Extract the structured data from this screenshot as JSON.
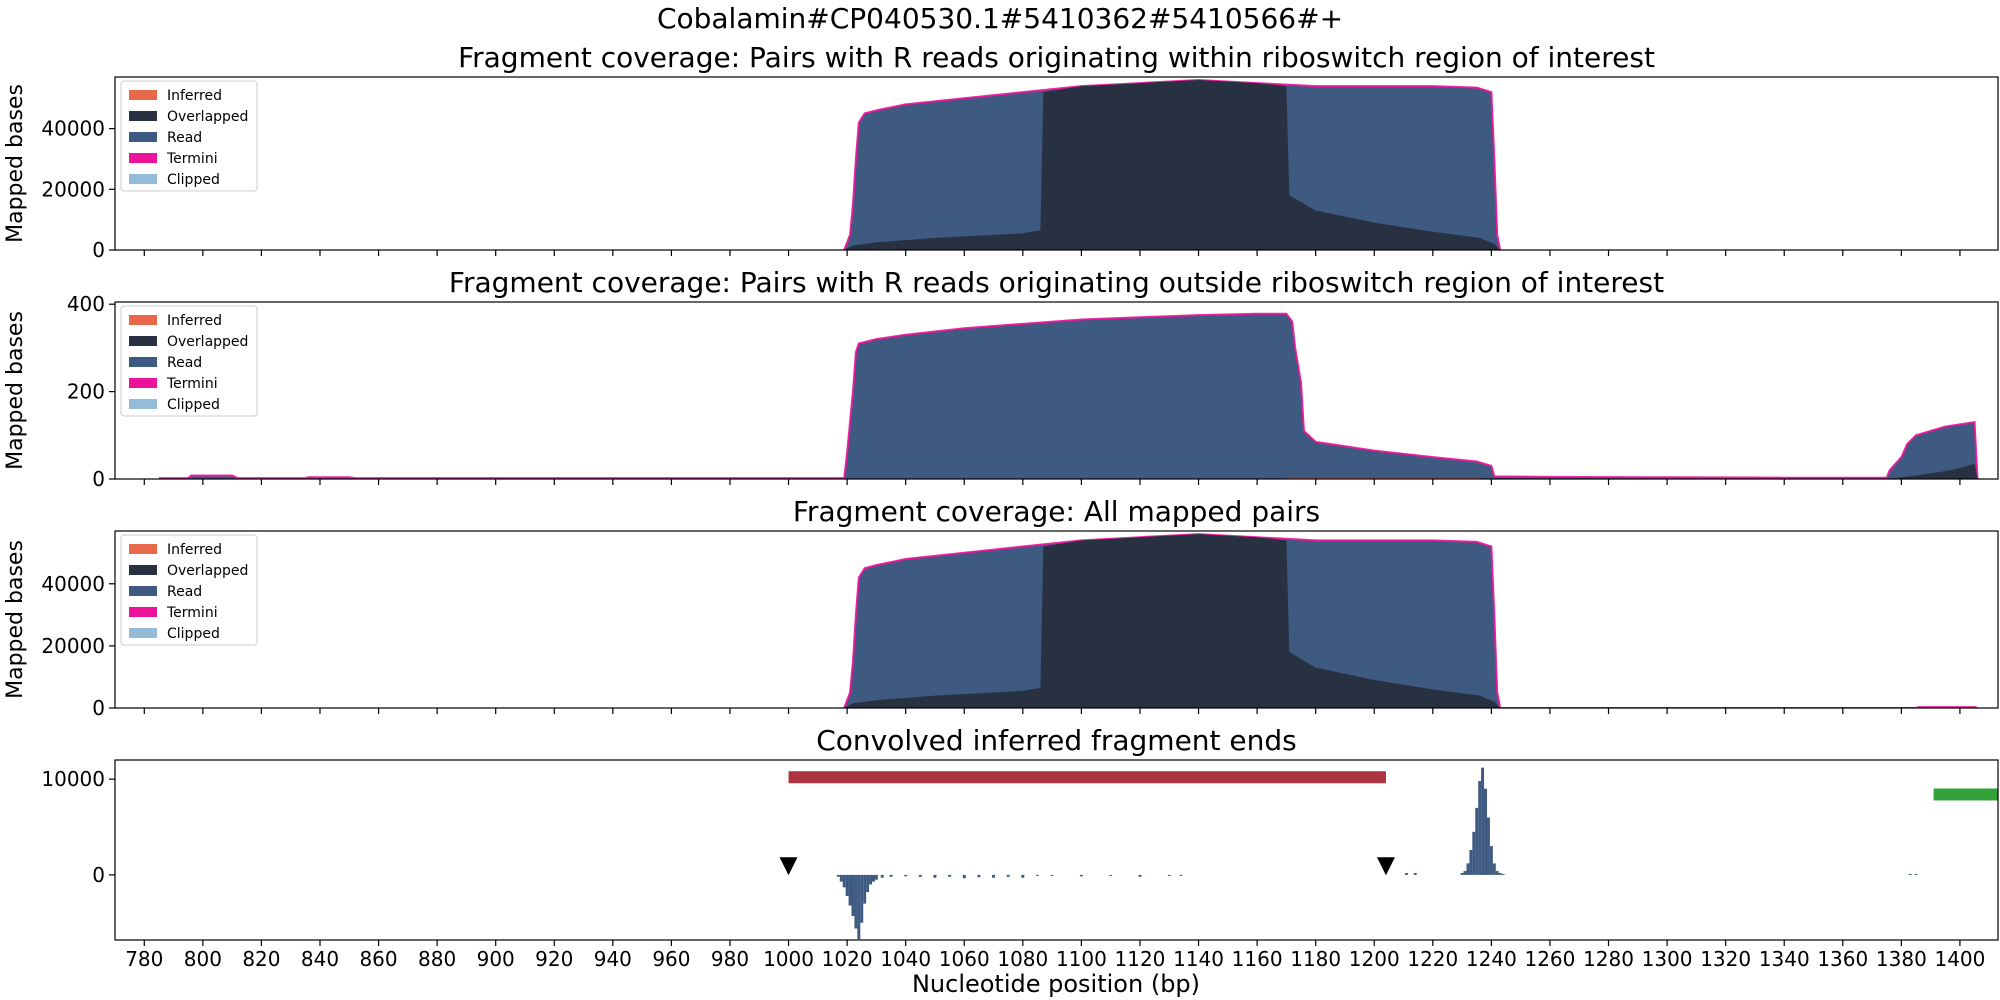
{
  "figure_title": "Cobalamin#CP040530.1#5410362#5410566#+",
  "xlabel": "Nucleotide position (bp)",
  "x_ticks": [
    780,
    800,
    820,
    840,
    860,
    880,
    900,
    920,
    940,
    960,
    980,
    1000,
    1020,
    1040,
    1060,
    1080,
    1100,
    1120,
    1140,
    1160,
    1180,
    1200,
    1220,
    1240,
    1260,
    1280,
    1300,
    1320,
    1340,
    1360,
    1380,
    1400
  ],
  "x_tick_labels": [
    "780",
    "800",
    "820",
    "840",
    "860",
    "880",
    "900",
    "920",
    "940",
    "960",
    "980",
    "1000",
    "1020",
    "1040",
    "1060",
    "1080",
    "1100",
    "1120",
    "1140",
    "1160",
    "1180",
    "1200",
    "1220",
    "1240",
    "1260",
    "1280",
    "1300",
    "1320",
    "1340",
    "1360",
    "1380",
    "1400"
  ],
  "colors": {
    "inferred": "#e8684a",
    "overlapped": "#283142",
    "read": "#3e5a80",
    "termini": "#ee1199",
    "clipped": "#92bcd8",
    "bar_red": "#ad3340",
    "bar_green": "#34a23a",
    "marker": "#000000"
  },
  "legend_labels": [
    "Inferred",
    "Overlapped",
    "Read",
    "Termini",
    "Clipped"
  ],
  "chart_data": [
    {
      "type": "area",
      "title": "Fragment coverage: Pairs with R reads originating within riboswitch region of interest",
      "xlabel": "",
      "ylabel": "Mapped bases",
      "xlim": [
        770,
        1413
      ],
      "ylim": [
        0,
        57000
      ],
      "yticks": [
        0,
        20000,
        40000
      ],
      "ytick_labels": [
        "0",
        "20000",
        "40000"
      ],
      "legend": "top-left",
      "grid": false,
      "series": [
        {
          "name": "Read",
          "x": [
            1019,
            1021,
            1022,
            1023,
            1024,
            1026,
            1030,
            1040,
            1060,
            1080,
            1100,
            1120,
            1140,
            1160,
            1180,
            1200,
            1220,
            1235,
            1240,
            1241,
            1242,
            1243
          ],
          "values": [
            0,
            5000,
            15000,
            30000,
            42000,
            45000,
            46000,
            48000,
            50000,
            52000,
            54000,
            55000,
            56000,
            55000,
            54000,
            54000,
            54000,
            53500,
            52000,
            30000,
            5000,
            0
          ]
        },
        {
          "name": "Overlapped",
          "x": [
            1019,
            1022,
            1030,
            1050,
            1070,
            1080,
            1086,
            1087,
            1100,
            1120,
            1140,
            1160,
            1170,
            1171,
            1180,
            1200,
            1220,
            1236,
            1241,
            1243
          ],
          "values": [
            0,
            1500,
            2500,
            4000,
            5000,
            5500,
            6500,
            52000,
            54000,
            55000,
            56000,
            55000,
            54000,
            18000,
            13000,
            9000,
            6000,
            4000,
            2000,
            0
          ]
        }
      ]
    },
    {
      "type": "area",
      "title": "Fragment coverage: Pairs with R reads originating outside riboswitch region of interest",
      "xlabel": "",
      "ylabel": "Mapped bases",
      "xlim": [
        770,
        1413
      ],
      "ylim": [
        0,
        405
      ],
      "yticks": [
        0,
        200,
        400
      ],
      "ytick_labels": [
        "0",
        "200",
        "400"
      ],
      "legend": "top-left",
      "grid": false,
      "series": [
        {
          "name": "Read",
          "x": [
            785,
            795,
            796,
            810,
            812,
            835,
            836,
            850,
            852,
            1019,
            1020,
            1022,
            1023,
            1024,
            1030,
            1040,
            1060,
            1080,
            1100,
            1120,
            1140,
            1160,
            1170,
            1172,
            1173,
            1175,
            1176,
            1180,
            1200,
            1220,
            1235,
            1240,
            1241,
            1260,
            1300,
            1340,
            1375,
            1376,
            1380,
            1382,
            1385,
            1390,
            1395,
            1400,
            1405,
            1406
          ],
          "values": [
            2,
            2,
            8,
            8,
            2,
            2,
            4,
            4,
            2,
            2,
            60,
            200,
            290,
            310,
            320,
            330,
            345,
            355,
            365,
            370,
            375,
            378,
            378,
            360,
            300,
            220,
            110,
            85,
            65,
            50,
            40,
            30,
            6,
            5,
            4,
            3,
            3,
            20,
            50,
            80,
            100,
            110,
            120,
            125,
            130,
            0
          ]
        },
        {
          "name": "Overlapped",
          "x": [
            1375,
            1385,
            1395,
            1400,
            1405,
            1406
          ],
          "values": [
            0,
            8,
            18,
            25,
            35,
            0
          ]
        },
        {
          "name": "Inferred",
          "x": [
            1170,
            1180,
            1200,
            1220,
            1236
          ],
          "values": [
            2,
            2,
            2,
            2,
            2
          ]
        }
      ]
    },
    {
      "type": "area",
      "title": "Fragment coverage: All mapped pairs",
      "xlabel": "",
      "ylabel": "Mapped bases",
      "xlim": [
        770,
        1413
      ],
      "ylim": [
        0,
        57000
      ],
      "yticks": [
        0,
        20000,
        40000
      ],
      "ytick_labels": [
        "0",
        "20000",
        "40000"
      ],
      "legend": "top-left",
      "grid": false,
      "series": [
        {
          "name": "Read",
          "x": [
            1019,
            1021,
            1022,
            1023,
            1024,
            1026,
            1030,
            1040,
            1060,
            1080,
            1100,
            1120,
            1140,
            1160,
            1180,
            1200,
            1220,
            1235,
            1240,
            1241,
            1242,
            1243,
            1385,
            1386,
            1405,
            1406
          ],
          "values": [
            0,
            5000,
            15000,
            30000,
            42000,
            45000,
            46000,
            48000,
            50000,
            52000,
            54000,
            55000,
            56000,
            55000,
            54000,
            54000,
            54000,
            53500,
            52000,
            30000,
            5000,
            0,
            0,
            300,
            300,
            0
          ]
        },
        {
          "name": "Overlapped",
          "x": [
            1019,
            1022,
            1030,
            1050,
            1070,
            1080,
            1086,
            1087,
            1100,
            1120,
            1140,
            1160,
            1170,
            1171,
            1180,
            1200,
            1220,
            1236,
            1241,
            1243
          ],
          "values": [
            0,
            1500,
            2500,
            4000,
            5000,
            5500,
            6500,
            52000,
            54000,
            55000,
            56000,
            55000,
            54000,
            18000,
            13000,
            9000,
            6000,
            4000,
            2000,
            0
          ]
        }
      ]
    },
    {
      "type": "bar",
      "title": "Convolved inferred fragment ends",
      "xlabel": "Nucleotide position (bp)",
      "ylabel": "",
      "xlim": [
        770,
        1413
      ],
      "ylim": [
        -6800,
        12000
      ],
      "yticks": [
        0,
        10000
      ],
      "ytick_labels": [
        "0",
        "10000"
      ],
      "grid": false,
      "x": [
        1211,
        1214,
        1230,
        1231,
        1232,
        1233,
        1234,
        1235,
        1236,
        1237,
        1238,
        1239,
        1240,
        1241,
        1242,
        1243,
        1244,
        1383,
        1385
      ],
      "values": [
        200,
        200,
        200,
        400,
        1200,
        2600,
        4500,
        7000,
        9800,
        11200,
        9000,
        6000,
        3000,
        1200,
        400,
        200,
        100,
        100,
        100
      ],
      "negative_x": [
        1017,
        1018,
        1019,
        1020,
        1021,
        1022,
        1023,
        1024,
        1025,
        1026,
        1027,
        1028,
        1029,
        1030,
        1032,
        1035,
        1040,
        1045,
        1050,
        1055,
        1060,
        1065,
        1070,
        1075,
        1080,
        1085,
        1090,
        1100,
        1110,
        1120,
        1130,
        1134
      ],
      "negative_values": [
        -200,
        -700,
        -1300,
        -2200,
        -3200,
        -4300,
        -5600,
        -6700,
        -5000,
        -3000,
        -1800,
        -1000,
        -700,
        -500,
        -300,
        -200,
        -150,
        -200,
        -300,
        -200,
        -350,
        -250,
        -300,
        -200,
        -300,
        -100,
        -100,
        -150,
        -100,
        -200,
        -100,
        -100
      ],
      "horizontal_bars": [
        {
          "color": "red",
          "x_start": 1000,
          "x_end": 1204,
          "y": 10200
        },
        {
          "color": "green",
          "x_start": 1391,
          "x_end": 1413,
          "y": 8400
        }
      ],
      "markers": [
        {
          "shape": "triangle-down",
          "x": 1000,
          "y": 900
        },
        {
          "shape": "triangle-down",
          "x": 1204,
          "y": 900
        }
      ]
    }
  ]
}
